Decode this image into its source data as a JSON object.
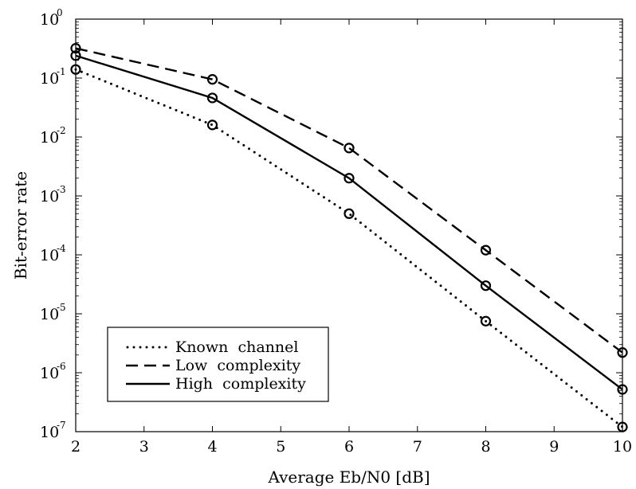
{
  "chart_data": {
    "type": "line",
    "xlabel": "Average  Eb/N0  [dB]",
    "ylabel": "Bit-error  rate",
    "xlim": [
      2,
      10
    ],
    "ylim": [
      1e-07,
      1
    ],
    "yscale": "log",
    "xticks": [
      2,
      3,
      4,
      5,
      6,
      7,
      8,
      9,
      10
    ],
    "yticks": [
      {
        "value": 1,
        "mantissa": "10",
        "exponent": "0"
      },
      {
        "value": 0.1,
        "mantissa": "10",
        "exponent": "-1"
      },
      {
        "value": 0.01,
        "mantissa": "10",
        "exponent": "-2"
      },
      {
        "value": 0.001,
        "mantissa": "10",
        "exponent": "-3"
      },
      {
        "value": 0.0001,
        "mantissa": "10",
        "exponent": "-4"
      },
      {
        "value": 1e-05,
        "mantissa": "10",
        "exponent": "-5"
      },
      {
        "value": 1e-06,
        "mantissa": "10",
        "exponent": "-6"
      },
      {
        "value": 1e-07,
        "mantissa": "10",
        "exponent": "-7"
      }
    ],
    "grid": false,
    "legend_position": "bottom-left",
    "marker": "circle",
    "x": [
      2,
      4,
      6,
      8,
      10
    ],
    "series": [
      {
        "name": "Known  channel",
        "style": "dotted",
        "values": [
          0.14,
          0.016,
          0.0005,
          7.5e-06,
          1.2e-07
        ]
      },
      {
        "name": "Low  complexity",
        "style": "dashed",
        "values": [
          0.32,
          0.095,
          0.0065,
          0.00012,
          2.2e-06
        ]
      },
      {
        "name": "High  complexity",
        "style": "solid",
        "values": [
          0.24,
          0.046,
          0.002,
          3e-05,
          5.2e-07
        ]
      }
    ]
  }
}
